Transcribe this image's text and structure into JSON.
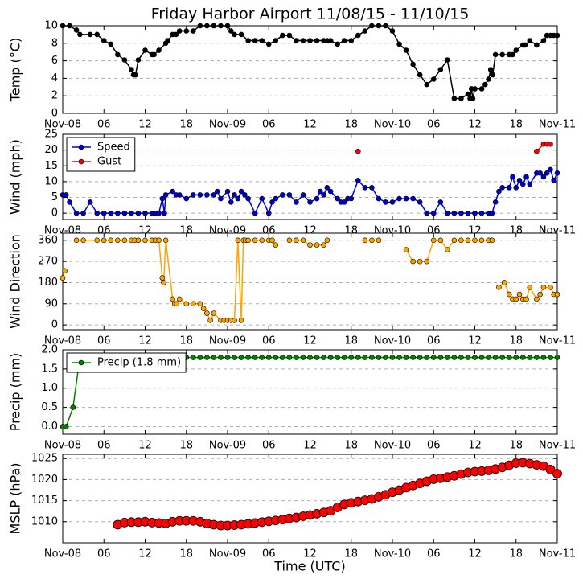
{
  "chart_data": [
    {
      "type": "line",
      "title": "Friday Harbor Airport 11/08/15 - 11/10/15",
      "ylabel": "Temp (°C)",
      "color": "#000000",
      "grid": true,
      "x": [
        0,
        1,
        2,
        2.5,
        4,
        5,
        6,
        7,
        8,
        9,
        10,
        10.3,
        10.6,
        11,
        12,
        13,
        13.3,
        14,
        15,
        15.3,
        16,
        16.5,
        17,
        18,
        19,
        20,
        21,
        22,
        23,
        24,
        24.5,
        25,
        26,
        27,
        28,
        29,
        30,
        31,
        32,
        33,
        34,
        35,
        36,
        37,
        38,
        38.5,
        39,
        40,
        41,
        42,
        43,
        44,
        45,
        46,
        47,
        48,
        49,
        50,
        51,
        52,
        53,
        54,
        55,
        56,
        57,
        58,
        59,
        59.3,
        59.5,
        59.7,
        60,
        61,
        61.5,
        62,
        62.3,
        62.6,
        63,
        64,
        65,
        65.5,
        66,
        67,
        67.3,
        68,
        69,
        70,
        70.5,
        71,
        71.5,
        72
      ],
      "values": [
        10,
        10,
        9.5,
        9,
        9,
        9,
        8.3,
        7.9,
        6.7,
        6.1,
        5,
        4.4,
        4.4,
        6.1,
        7.2,
        6.7,
        6.7,
        7.2,
        8,
        8.3,
        9,
        9,
        9.4,
        9.4,
        9.4,
        10,
        10,
        10,
        10,
        10,
        9.4,
        9,
        9,
        8.3,
        8.3,
        8.3,
        7.9,
        8.3,
        8.9,
        8.9,
        8.3,
        8.3,
        8.3,
        8.3,
        8.3,
        8.3,
        8.3,
        7.9,
        8.3,
        8.3,
        8.9,
        9.4,
        10,
        10,
        10,
        9.4,
        7.9,
        7.2,
        5.6,
        4.4,
        3.3,
        3.9,
        5,
        6.1,
        1.7,
        1.7,
        2.2,
        1.7,
        2.8,
        1.7,
        2.8,
        2.8,
        3.3,
        3.9,
        5,
        4.4,
        6.7,
        6.7,
        6.7,
        6.7,
        7.2,
        7.8,
        7.8,
        8.3,
        7.8,
        8.3,
        8.9,
        8.9,
        8.9,
        8.9
      ],
      "xlim": [
        0,
        72
      ],
      "ylim": [
        0,
        10
      ],
      "yticks": [
        0,
        2,
        4,
        6,
        8,
        10
      ],
      "xticks": [
        {
          "value": 0,
          "label": "Nov-08"
        },
        {
          "value": 6,
          "label": "06"
        },
        12,
        18,
        {
          "value": 24,
          "label": "Nov-09"
        },
        {
          "value": 30,
          "label": "06"
        },
        {
          "value": 36,
          "label": "12"
        },
        {
          "value": 42,
          "label": "18"
        },
        {
          "value": 48,
          "label": "Nov-10"
        },
        {
          "value": 54,
          "label": "06"
        },
        {
          "value": 60,
          "label": "12"
        },
        {
          "value": 66,
          "label": "18"
        },
        {
          "value": 72,
          "label": "Nov-11"
        }
      ]
    },
    {
      "type": "line",
      "ylabel": "Wind (mph)",
      "grid": true,
      "legend": "upper left",
      "series": [
        {
          "name": "Speed",
          "color": "#0000cc",
          "x": [
            0,
            0.5,
            1,
            2,
            3,
            4,
            5,
            6,
            7,
            8,
            9,
            10,
            11,
            12,
            13,
            13.5,
            14,
            14.5,
            14.8,
            15,
            16,
            16.5,
            17,
            18,
            19,
            20,
            21,
            22,
            22.5,
            23,
            24,
            24.5,
            25,
            25.5,
            26,
            26.5,
            27,
            28,
            29,
            30,
            30.5,
            31,
            32,
            33,
            34,
            35,
            36,
            37,
            37.5,
            38,
            38.5,
            39,
            40,
            40.5,
            41,
            41.5,
            42,
            43,
            44,
            45,
            46,
            47,
            48,
            49,
            50,
            51,
            52,
            53,
            54,
            55,
            56,
            57,
            58,
            59,
            60,
            61,
            62,
            62.5,
            63,
            63.5,
            64,
            65,
            65.5,
            66,
            66.5,
            67,
            67.5,
            68,
            69,
            69.5,
            70,
            70.5,
            71,
            71.5,
            72
          ],
          "values": [
            5.8,
            5.8,
            3.5,
            0,
            0,
            3.5,
            0,
            0,
            0,
            0,
            0,
            0,
            0,
            0,
            0,
            0,
            0,
            4.6,
            0,
            5.8,
            6.9,
            5.8,
            5.8,
            4.6,
            5.8,
            5.8,
            5.8,
            5.8,
            6.9,
            4.6,
            6.9,
            3.5,
            5.8,
            4.6,
            6.9,
            5.8,
            4.6,
            0,
            4.6,
            0,
            3.5,
            4.6,
            5.8,
            5.8,
            3.5,
            5.8,
            3.5,
            4.6,
            6.9,
            5.8,
            8.1,
            6.9,
            4.6,
            3.5,
            3.5,
            4.6,
            4.6,
            10.4,
            8.1,
            8.1,
            4.6,
            3.5,
            3.5,
            4.6,
            4.6,
            4.6,
            3.5,
            0,
            0,
            3.5,
            0,
            0,
            0,
            0,
            0,
            0,
            0,
            0,
            3.5,
            6.9,
            8.1,
            8.1,
            11.5,
            8.1,
            10.4,
            9.2,
            11.5,
            9.2,
            12.7,
            12.7,
            11.5,
            12.7,
            13.8,
            10.4,
            12.7
          ]
        },
        {
          "name": "Gust",
          "color": "#ff0000",
          "x": [
            43,
            50,
            69,
            70,
            70.5,
            71
          ],
          "values": [
            19.6,
            null,
            19.6,
            21.9,
            21.9,
            21.9
          ]
        }
      ],
      "xlim": [
        0,
        72
      ],
      "ylim": [
        -2,
        25
      ],
      "yticks": [
        0,
        5,
        10,
        15,
        20,
        25
      ],
      "xticks": [
        {
          "value": 0,
          "label": "Nov-08"
        },
        {
          "value": 6,
          "label": "06"
        },
        12,
        18,
        {
          "value": 24,
          "label": "Nov-09"
        },
        {
          "value": 30,
          "label": "06"
        },
        {
          "value": 36,
          "label": "12"
        },
        {
          "value": 42,
          "label": "18"
        },
        {
          "value": 48,
          "label": "Nov-10"
        },
        {
          "value": 54,
          "label": "06"
        },
        {
          "value": 60,
          "label": "12"
        },
        {
          "value": 66,
          "label": "18"
        },
        {
          "value": 72,
          "label": "Nov-11"
        }
      ]
    },
    {
      "type": "line",
      "ylabel": "Wind Direction",
      "color": "#ffa500",
      "grid": true,
      "x": [
        0,
        0.3,
        1,
        2,
        3,
        5,
        6,
        7,
        8,
        9,
        10,
        10.5,
        11,
        12,
        13,
        13.5,
        14,
        14.5,
        14.7,
        15,
        16,
        16.3,
        16.6,
        17,
        18,
        19,
        20,
        20.5,
        21,
        21.5,
        22,
        23,
        23.5,
        24,
        24.5,
        25,
        25.5,
        26,
        26.3,
        26.6,
        27,
        28,
        29,
        30,
        30.5,
        31,
        32,
        33,
        34,
        35,
        36,
        37,
        38,
        38.5,
        40,
        44,
        45,
        46,
        47,
        50,
        51,
        52,
        53,
        54,
        55,
        56,
        57,
        58,
        59,
        60,
        61,
        62,
        62.5,
        63,
        63.5,
        64.3,
        65,
        65.5,
        66,
        66.5,
        67,
        67.5,
        68,
        69,
        69.5,
        70,
        71,
        71.5,
        72
      ],
      "values": [
        200,
        230,
        null,
        360,
        360,
        360,
        360,
        360,
        360,
        360,
        360,
        360,
        360,
        360,
        360,
        360,
        360,
        200,
        180,
        360,
        110,
        90,
        90,
        110,
        90,
        90,
        90,
        70,
        50,
        20,
        50,
        20,
        20,
        20,
        20,
        20,
        360,
        20,
        360,
        360,
        360,
        360,
        360,
        360,
        360,
        340,
        null,
        360,
        360,
        360,
        340,
        340,
        340,
        360,
        null,
        360,
        360,
        360,
        null,
        320,
        270,
        270,
        270,
        360,
        360,
        320,
        360,
        360,
        360,
        360,
        360,
        360,
        360,
        null,
        160,
        180,
        130,
        110,
        110,
        130,
        110,
        110,
        160,
        110,
        130,
        160,
        160,
        130,
        130
      ],
      "xlim": [
        0,
        72
      ],
      "ylim": [
        -20,
        390
      ],
      "yticks": [
        0,
        90,
        180,
        270,
        360
      ],
      "xticks": [
        {
          "value": 0,
          "label": "Nov-08"
        },
        {
          "value": 6,
          "label": "06"
        },
        12,
        18,
        {
          "value": 24,
          "label": "Nov-09"
        },
        {
          "value": 30,
          "label": "06"
        },
        {
          "value": 36,
          "label": "12"
        },
        {
          "value": 42,
          "label": "18"
        },
        {
          "value": 48,
          "label": "Nov-10"
        },
        {
          "value": 54,
          "label": "06"
        },
        {
          "value": 60,
          "label": "12"
        },
        {
          "value": 66,
          "label": "18"
        },
        {
          "value": 72,
          "label": "Nov-11"
        }
      ]
    },
    {
      "type": "line",
      "ylabel": "Precip (mm)",
      "grid": true,
      "legend": "upper left",
      "series": [
        {
          "name": "Precip (1.8 mm)",
          "color": "#008000",
          "x": [
            0,
            0.5,
            1.5,
            2.5,
            3,
            4,
            5,
            6,
            7,
            8,
            9,
            10,
            11,
            12,
            13,
            14,
            15,
            16,
            17,
            18,
            19,
            20,
            21,
            22,
            23,
            24,
            25,
            26,
            27,
            28,
            29,
            30,
            31,
            32,
            33,
            34,
            35,
            36,
            37,
            38,
            39,
            40,
            41,
            42,
            43,
            44,
            45,
            46,
            47,
            48,
            49,
            50,
            51,
            52,
            53,
            54,
            55,
            56,
            57,
            58,
            59,
            60,
            61,
            62,
            63,
            64,
            65,
            66,
            67,
            68,
            69,
            70,
            71,
            72
          ],
          "values": [
            0,
            0,
            0.5,
            1.8,
            1.8,
            1.8,
            1.8,
            1.8,
            1.8,
            1.8,
            1.8,
            1.8,
            1.8,
            1.8,
            1.8,
            1.8,
            1.8,
            1.8,
            1.8,
            1.8,
            1.8,
            1.8,
            1.8,
            1.8,
            1.8,
            1.8,
            1.8,
            1.8,
            1.8,
            1.8,
            1.8,
            1.8,
            1.8,
            1.8,
            1.8,
            1.8,
            1.8,
            1.8,
            1.8,
            1.8,
            1.8,
            1.8,
            1.8,
            1.8,
            1.8,
            1.8,
            1.8,
            1.8,
            1.8,
            1.8,
            1.8,
            1.8,
            1.8,
            1.8,
            1.8,
            1.8,
            1.8,
            1.8,
            1.8,
            1.8,
            1.8,
            1.8,
            1.8,
            1.8,
            1.8,
            1.8,
            1.8,
            1.8,
            1.8,
            1.8,
            1.8,
            1.8,
            1.8,
            1.8
          ]
        }
      ],
      "xlim": [
        0,
        72
      ],
      "ylim": [
        -0.2,
        2.0
      ],
      "yticks": [
        {
          "value": 0,
          "label": "0.0"
        },
        0.5,
        {
          "value": 1,
          "label": "1.0"
        },
        1.5,
        {
          "value": 2,
          "label": "2.0"
        }
      ],
      "xticks": [
        {
          "value": 0,
          "label": "Nov-08"
        },
        {
          "value": 6,
          "label": "06"
        },
        12,
        18,
        {
          "value": 24,
          "label": "Nov-09"
        },
        {
          "value": 30,
          "label": "06"
        },
        {
          "value": 36,
          "label": "12"
        },
        {
          "value": 42,
          "label": "18"
        },
        {
          "value": 48,
          "label": "Nov-10"
        },
        {
          "value": 54,
          "label": "06"
        },
        {
          "value": 60,
          "label": "12"
        },
        {
          "value": 66,
          "label": "18"
        },
        {
          "value": 72,
          "label": "Nov-11"
        }
      ]
    },
    {
      "type": "scatter",
      "ylabel": "MSLP (hPa)",
      "xlabel": "Time (UTC)",
      "color": "#ff0000",
      "grid": true,
      "x": [
        8,
        9,
        10,
        11,
        12,
        13,
        14,
        15,
        16,
        17,
        18,
        19,
        20,
        21,
        22,
        23,
        24,
        25,
        26,
        27,
        28,
        29,
        30,
        31,
        32,
        33,
        34,
        35,
        36,
        37,
        38,
        39,
        40,
        41,
        42,
        43,
        44,
        45,
        46,
        47,
        48,
        49,
        50,
        51,
        52,
        53,
        54,
        55,
        56,
        57,
        58,
        59,
        60,
        61,
        62,
        63,
        64,
        65,
        66,
        67,
        68,
        69,
        70,
        71,
        72
      ],
      "values": [
        1009.3,
        1009.8,
        1009.9,
        1009.9,
        1010.0,
        1009.8,
        1009.7,
        1009.6,
        1010.0,
        1010.2,
        1010.2,
        1010.2,
        1010.0,
        1009.6,
        1009.3,
        1009.1,
        1009.1,
        1009.2,
        1009.3,
        1009.5,
        1009.7,
        1009.9,
        1010.1,
        1010.3,
        1010.5,
        1010.8,
        1011.0,
        1011.3,
        1011.6,
        1011.9,
        1012.2,
        1012.6,
        1013.4,
        1014.1,
        1014.5,
        1014.8,
        1015.1,
        1015.4,
        1015.9,
        1016.4,
        1017.0,
        1017.5,
        1018.1,
        1018.6,
        1019.1,
        1019.6,
        1020.1,
        1020.3,
        1020.6,
        1020.9,
        1021.3,
        1021.7,
        1021.9,
        1022.0,
        1022.2,
        1022.5,
        1022.9,
        1023.4,
        1023.9,
        1024.0,
        1023.8,
        1023.5,
        1023.2,
        1022.4,
        1021.4
      ],
      "xlim": [
        0,
        72
      ],
      "ylim": [
        1005,
        1026
      ],
      "yticks": [
        1010,
        1015,
        1020,
        1025
      ],
      "xticks": [
        {
          "value": 0,
          "label": "Nov-08"
        },
        {
          "value": 6,
          "label": "06"
        },
        12,
        18,
        {
          "value": 24,
          "label": "Nov-09"
        },
        {
          "value": 30,
          "label": "06"
        },
        {
          "value": 36,
          "label": "12"
        },
        {
          "value": 42,
          "label": "18"
        },
        {
          "value": 48,
          "label": "Nov-10"
        },
        {
          "value": 54,
          "label": "06"
        },
        {
          "value": 60,
          "label": "12"
        },
        {
          "value": 66,
          "label": "18"
        },
        {
          "value": 72,
          "label": "Nov-11"
        }
      ]
    }
  ]
}
